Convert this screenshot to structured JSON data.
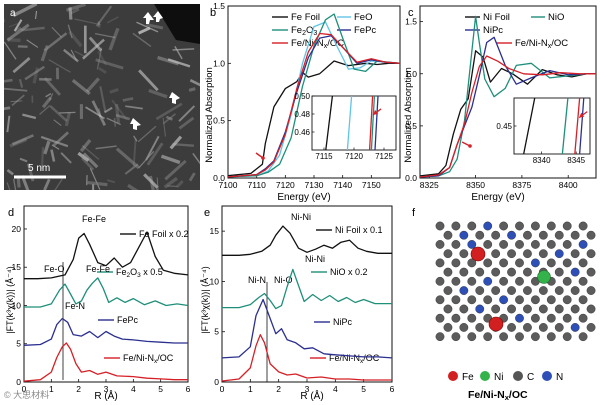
{
  "colors": {
    "black": "#111111",
    "cyan": "#5fc4e6",
    "teal": "#1f8f7a",
    "navy": "#2b2f8f",
    "red": "#d52027",
    "fe": "#d21f1f",
    "ni": "#33b34a",
    "c": "#555555",
    "n": "#2e4fb5"
  },
  "panel_labels": {
    "a": "a",
    "b": "b",
    "c": "c",
    "d": "d",
    "e": "e",
    "f": "f"
  },
  "panel_a": {
    "scalebar": "5 nm"
  },
  "watermark": "© 大思材料",
  "panel_f": {
    "legend": [
      "Fe",
      "Ni",
      "C",
      "N"
    ],
    "caption": "Fe/Ni-N",
    "caption_sub": "x",
    "caption_tail": "/OC"
  },
  "chart_data": [
    {
      "panel": "b",
      "type": "line",
      "xlabel": "Energy (eV)",
      "ylabel": "Normalized Absorption",
      "xlim": [
        7100,
        7160
      ],
      "ylim": [
        0,
        1.5
      ],
      "xticks": [
        "7100",
        "7110",
        "7120",
        "7130",
        "7140",
        "7150"
      ],
      "yticks": [
        "0.0",
        "0.5",
        "1.0",
        "1.5"
      ],
      "legend": [
        "Fe Foil",
        "FeO",
        "Fe2O3",
        "FePc",
        "Fe/Ni-Nx/OC"
      ],
      "series": [
        {
          "name": "Fe Foil",
          "color": "#111111",
          "x": [
            7100,
            7108,
            7112,
            7113,
            7116,
            7120,
            7124,
            7126,
            7128,
            7132,
            7137,
            7142,
            7148,
            7152,
            7156,
            7160
          ],
          "y": [
            0.02,
            0.04,
            0.12,
            0.3,
            0.62,
            0.78,
            0.84,
            0.92,
            0.88,
            0.91,
            1.02,
            0.98,
            1.0,
            0.99,
            1.0,
            1.0
          ]
        },
        {
          "name": "FeO",
          "color": "#5fc4e6",
          "x": [
            7100,
            7110,
            7114,
            7118,
            7122,
            7126,
            7130,
            7134,
            7138,
            7142,
            7146,
            7150,
            7155,
            7160
          ],
          "y": [
            0.01,
            0.02,
            0.06,
            0.2,
            0.55,
            1.0,
            1.32,
            1.36,
            1.15,
            0.95,
            0.96,
            1.02,
            1.01,
            1.0
          ]
        },
        {
          "name": "Fe2O3",
          "color": "#1f8f7a",
          "x": [
            7100,
            7110,
            7114,
            7118,
            7122,
            7126,
            7130,
            7134,
            7137,
            7140,
            7144,
            7148,
            7152,
            7156,
            7160
          ],
          "y": [
            0.01,
            0.02,
            0.05,
            0.12,
            0.35,
            0.8,
            1.15,
            1.38,
            1.43,
            1.22,
            0.95,
            0.93,
            1.02,
            1.01,
            1.0
          ]
        },
        {
          "name": "FePc",
          "color": "#2b2f8f",
          "x": [
            7100,
            7110,
            7113,
            7116,
            7120,
            7124,
            7128,
            7132,
            7136,
            7140,
            7145,
            7150,
            7155,
            7160
          ],
          "y": [
            0.01,
            0.03,
            0.08,
            0.15,
            0.4,
            0.75,
            1.05,
            1.22,
            1.24,
            1.14,
            1.0,
            1.03,
            1.01,
            1.0
          ]
        },
        {
          "name": "Fe/Ni-Nx/OC",
          "color": "#d52027",
          "x": [
            7100,
            7110,
            7113,
            7116,
            7120,
            7124,
            7128,
            7132,
            7136,
            7140,
            7145,
            7150,
            7155,
            7160
          ],
          "y": [
            0.01,
            0.03,
            0.07,
            0.14,
            0.38,
            0.78,
            1.1,
            1.26,
            1.25,
            1.14,
            1.01,
            1.04,
            1.01,
            1.0
          ]
        }
      ],
      "inset": {
        "xlim": [
          7113,
          7127
        ],
        "ylim": [
          0.44,
          0.5
        ],
        "xticks": [
          "7115",
          "7120",
          "7125"
        ],
        "yticks": [
          "0.46",
          "0.48",
          "0.50"
        ],
        "lines": [
          {
            "name": "Fe Foil",
            "x": [
              7115.3,
              7116.4
            ],
            "y": [
              0.44,
              0.5
            ]
          },
          {
            "name": "FeO",
            "x": [
              7118.9,
              7119.6
            ],
            "y": [
              0.44,
              0.5
            ]
          },
          {
            "name": "Fe2O3",
            "x": [
              7122.9,
              7123.4
            ],
            "y": [
              0.44,
              0.5
            ]
          },
          {
            "name": "FePc",
            "x": [
              7123.5,
              7124.0
            ],
            "y": [
              0.44,
              0.5
            ]
          },
          {
            "name": "Fe/Ni-Nx/OC",
            "x": [
              7122.6,
              7123.1
            ],
            "y": [
              0.44,
              0.5
            ]
          }
        ]
      }
    },
    {
      "panel": "c",
      "type": "line",
      "xlabel": "Energy (eV)",
      "ylabel": "Normalized Absorption",
      "xlim": [
        8320,
        8415
      ],
      "ylim": [
        0,
        1.65
      ],
      "xticks": [
        "8325",
        "8350",
        "8375",
        "8400"
      ],
      "yticks": [
        "0.0",
        "0.5",
        "1.0",
        "1.5"
      ],
      "legend": [
        "Ni Foil",
        "NiO",
        "NiPc",
        "Fe/Ni-Nx/OC"
      ],
      "series": [
        {
          "name": "Ni Foil",
          "color": "#111111",
          "x": [
            8320,
            8330,
            8334,
            8338,
            8342,
            8346,
            8350,
            8354,
            8358,
            8364,
            8370,
            8378,
            8386,
            8394,
            8402,
            8410,
            8415
          ],
          "y": [
            0.02,
            0.04,
            0.12,
            0.42,
            0.66,
            0.76,
            1.22,
            1.16,
            0.92,
            1.05,
            1.0,
            0.9,
            1.04,
            0.99,
            0.97,
            1.0,
            1.0
          ]
        },
        {
          "name": "NiO",
          "color": "#1f8f7a",
          "x": [
            8320,
            8330,
            8336,
            8340,
            8344,
            8348,
            8350,
            8352,
            8355,
            8360,
            8366,
            8372,
            8380,
            8390,
            8400,
            8410,
            8415
          ],
          "y": [
            0.01,
            0.02,
            0.06,
            0.18,
            0.55,
            1.22,
            1.55,
            1.3,
            0.95,
            0.78,
            0.86,
            1.08,
            1.1,
            0.96,
            0.98,
            1.0,
            1.0
          ]
        },
        {
          "name": "NiPc",
          "color": "#2b2f8f",
          "x": [
            8320,
            8330,
            8336,
            8340,
            8344,
            8348,
            8352,
            8356,
            8360,
            8366,
            8372,
            8380,
            8390,
            8400,
            8410,
            8415
          ],
          "y": [
            0.01,
            0.02,
            0.1,
            0.32,
            0.5,
            0.68,
            0.98,
            1.3,
            1.35,
            1.08,
            0.9,
            0.96,
            1.03,
            0.99,
            1.0,
            1.0
          ]
        },
        {
          "name": "Fe/Ni-Nx/OC",
          "color": "#d52027",
          "x": [
            8320,
            8330,
            8336,
            8340,
            8344,
            8348,
            8352,
            8356,
            8362,
            8368,
            8376,
            8386,
            8396,
            8406,
            8415
          ],
          "y": [
            0.01,
            0.03,
            0.1,
            0.32,
            0.52,
            0.82,
            1.07,
            1.17,
            1.12,
            1.05,
            1.0,
            0.99,
            1.01,
            1.0,
            1.0
          ]
        }
      ],
      "inset": {
        "xlim": [
          8336,
          8347
        ],
        "ylim": [
          0.4,
          0.5
        ],
        "xticks": [
          "8340",
          "8345"
        ],
        "yticks": [
          "0.45"
        ],
        "lines": [
          {
            "name": "Ni Foil",
            "x": [
              8337.4,
              8339.0
            ],
            "y": [
              0.4,
              0.5
            ]
          },
          {
            "name": "NiO",
            "x": [
              8343.0,
              8343.8
            ],
            "y": [
              0.4,
              0.5
            ]
          },
          {
            "name": "NiPc",
            "x": [
              8345.5,
              8346.1
            ],
            "y": [
              0.4,
              0.5
            ]
          },
          {
            "name": "Fe/Ni-Nx/OC",
            "x": [
              8344.8,
              8345.5
            ],
            "y": [
              0.4,
              0.5
            ]
          }
        ]
      }
    },
    {
      "panel": "d",
      "type": "line",
      "xlabel": "R (Å)",
      "ylabel": "|FT(k³χ(k))| (Å⁻⁴)",
      "xlim": [
        0,
        6
      ],
      "ylim": [
        0,
        23
      ],
      "xticks": [
        "0",
        "1",
        "2",
        "3",
        "4",
        "5",
        "6"
      ],
      "yticks": [
        "0",
        "5",
        "10",
        "15",
        "20"
      ],
      "series": [
        {
          "name": "Fe Foil x 0.2",
          "color": "#111111",
          "x": [
            0,
            0.5,
            1.0,
            1.5,
            1.8,
            2.0,
            2.2,
            2.4,
            2.7,
            3.0,
            3.3,
            3.6,
            3.9,
            4.2,
            4.5,
            4.8,
            5.1,
            5.5,
            6.0
          ],
          "y": [
            13.5,
            13.5,
            13.6,
            14.0,
            16.0,
            18.8,
            19.4,
            18.0,
            15.6,
            15.2,
            16.2,
            15.0,
            15.6,
            17.6,
            19.6,
            16.4,
            14.6,
            14.2,
            14.0
          ]
        },
        {
          "name": "Fe2O3 x 0.5",
          "color": "#1f8f7a",
          "x": [
            0,
            0.6,
            1.0,
            1.3,
            1.5,
            1.7,
            1.9,
            2.1,
            2.3,
            2.5,
            2.7,
            2.9,
            3.1,
            3.4,
            3.7,
            4.0,
            4.4,
            4.8,
            5.2,
            5.6,
            6.0
          ],
          "y": [
            9.8,
            9.8,
            10.2,
            12.0,
            12.8,
            11.5,
            10.2,
            10.6,
            12.0,
            12.9,
            13.6,
            12.2,
            10.4,
            11.0,
            10.4,
            10.9,
            10.1,
            10.6,
            10.0,
            10.2,
            10.0
          ]
        },
        {
          "name": "FePc",
          "color": "#2b2f8f",
          "x": [
            0,
            0.6,
            1.0,
            1.2,
            1.4,
            1.6,
            1.8,
            2.1,
            2.4,
            2.7,
            3.0,
            3.3,
            3.6,
            4.0,
            4.5,
            5.0,
            5.5,
            6.0
          ],
          "y": [
            4.8,
            4.9,
            5.6,
            7.5,
            8.3,
            7.8,
            6.2,
            6.0,
            6.6,
            5.8,
            6.6,
            6.0,
            5.6,
            5.5,
            5.3,
            5.2,
            5.1,
            5.1
          ]
        },
        {
          "name": "Fe/Ni-Nx/OC",
          "color": "#d52027",
          "x": [
            0,
            0.6,
            1.0,
            1.2,
            1.4,
            1.55,
            1.7,
            1.9,
            2.1,
            2.4,
            2.7,
            3.0,
            3.4,
            4.0,
            4.5,
            5.0,
            5.5,
            6.0
          ],
          "y": [
            0.1,
            0.3,
            1.3,
            3.2,
            4.6,
            5.1,
            4.3,
            2.4,
            1.3,
            1.5,
            1.0,
            1.3,
            0.8,
            0.7,
            0.5,
            0.4,
            0.3,
            0.3
          ]
        }
      ],
      "annotations": [
        "Fe-Fe",
        "Fe-O",
        "Fe-Fe",
        "Fe-N"
      ]
    },
    {
      "panel": "e",
      "type": "line",
      "xlabel": "R (Å)",
      "ylabel": "|FT(k³χ(k))| (Å⁻⁴)",
      "xlim": [
        0,
        6
      ],
      "ylim": [
        0,
        17.5
      ],
      "xticks": [
        "0",
        "1",
        "2",
        "3",
        "4",
        "5",
        "6"
      ],
      "yticks": [
        "0",
        "5",
        "10",
        "15"
      ],
      "series": [
        {
          "name": "Ni Foil x 0.1",
          "color": "#111111",
          "x": [
            0,
            0.6,
            1.0,
            1.4,
            1.7,
            1.9,
            2.15,
            2.4,
            2.7,
            3.0,
            3.3,
            3.6,
            3.9,
            4.2,
            4.5,
            4.8,
            5.1,
            5.5,
            6.0
          ],
          "y": [
            12.6,
            12.6,
            12.7,
            13.0,
            13.6,
            14.6,
            15.5,
            14.8,
            13.3,
            12.9,
            13.2,
            13.6,
            13.3,
            13.9,
            14.1,
            13.3,
            13.0,
            12.8,
            12.8
          ]
        },
        {
          "name": "NiO x 0.2",
          "color": "#1f8f7a",
          "x": [
            0,
            0.6,
            1.0,
            1.3,
            1.5,
            1.7,
            1.9,
            2.1,
            2.3,
            2.5,
            2.7,
            2.9,
            3.2,
            3.5,
            3.8,
            4.1,
            4.4,
            4.7,
            5.0,
            5.4,
            6.0
          ],
          "y": [
            7.4,
            7.4,
            7.7,
            8.4,
            8.8,
            8.1,
            7.3,
            7.6,
            9.5,
            11.2,
            9.6,
            8.0,
            8.7,
            8.1,
            8.6,
            8.0,
            8.4,
            7.9,
            8.2,
            7.8,
            7.8
          ]
        },
        {
          "name": "NiPc",
          "color": "#2b2f8f",
          "x": [
            0,
            0.6,
            1.0,
            1.2,
            1.45,
            1.7,
            1.9,
            2.1,
            2.3,
            2.6,
            2.9,
            3.2,
            3.6,
            4.0,
            4.5,
            5.0,
            5.5,
            6.0
          ],
          "y": [
            2.4,
            2.5,
            3.5,
            6.6,
            8.2,
            6.3,
            4.8,
            5.3,
            4.2,
            3.9,
            3.3,
            3.4,
            2.8,
            2.7,
            2.6,
            2.5,
            2.5,
            2.4
          ]
        },
        {
          "name": "Fe/Ni-Nx/OC",
          "color": "#d52027",
          "x": [
            0,
            0.6,
            1.0,
            1.2,
            1.35,
            1.5,
            1.7,
            2.0,
            2.3,
            2.6,
            3.0,
            3.5,
            4.0,
            4.5,
            5.0,
            5.5,
            6.0
          ],
          "y": [
            0.1,
            0.3,
            1.4,
            3.6,
            4.7,
            3.9,
            1.8,
            1.0,
            0.7,
            0.8,
            0.4,
            0.5,
            0.3,
            0.3,
            0.2,
            0.2,
            0.2
          ]
        }
      ],
      "annotations": [
        "Ni-Ni",
        "Ni-Ni",
        "Ni-N",
        "Ni-O"
      ]
    }
  ]
}
